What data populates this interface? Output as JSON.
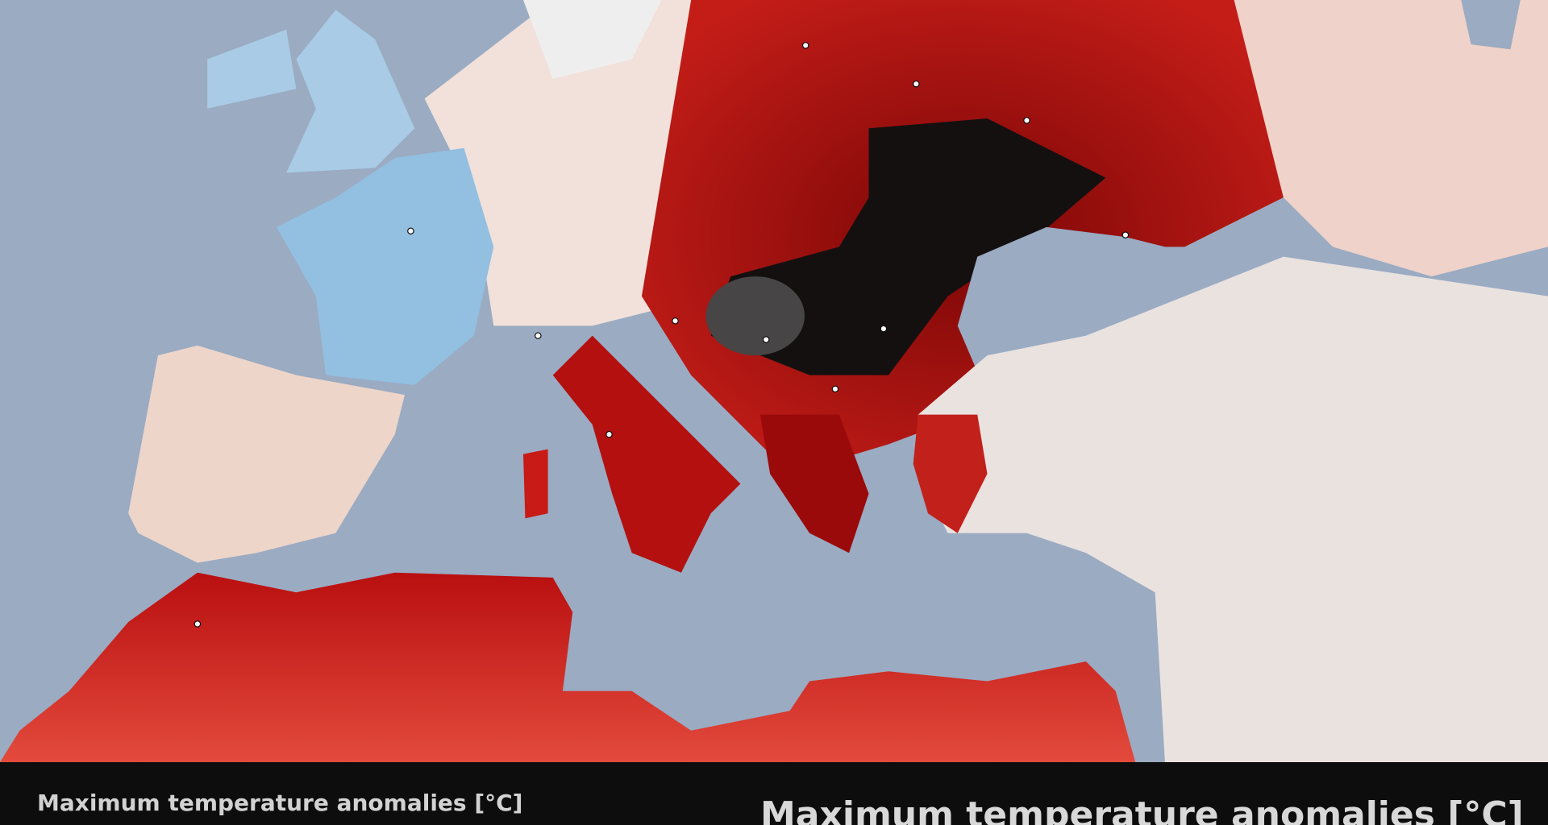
{
  "caption": {
    "left": "Maximum temperature anomalies [°C]",
    "right": "Maximum temperature anomalies [°C]"
  }
}
